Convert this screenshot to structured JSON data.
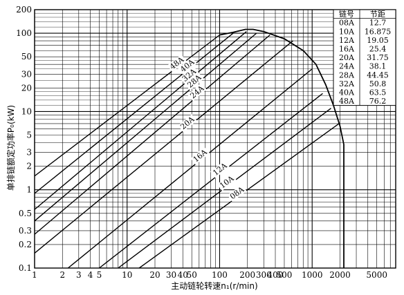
{
  "chart_data": {
    "type": "line",
    "title": "",
    "x_scale": "log",
    "y_scale": "log",
    "xlim": [
      1,
      8000
    ],
    "ylim": [
      0.1,
      200
    ],
    "grid": true,
    "xlabel": "主动链轮转速n₁(r/min)",
    "ylabel": "单排链额定功率P₀(kW)",
    "x_ticks": [
      "1",
      "2",
      "3",
      "4",
      "5",
      "10",
      "20",
      "30",
      "40",
      "50",
      "100",
      "200",
      "300",
      "400",
      "500",
      "1000",
      "2000",
      "5000"
    ],
    "y_ticks": [
      "0.1",
      "0.2",
      "0.3",
      "0.5",
      "1",
      "2",
      "3",
      "5",
      "10",
      "20",
      "30",
      "50",
      "100",
      "200"
    ],
    "series": [
      {
        "name": "48A",
        "points": [
          [
            1,
            1.5
          ],
          [
            100,
            95
          ]
        ]
      },
      {
        "name": "40A",
        "points": [
          [
            1,
            0.9
          ],
          [
            140,
            100
          ]
        ]
      },
      {
        "name": "32A",
        "points": [
          [
            1,
            0.56
          ],
          [
            195,
            105
          ]
        ]
      },
      {
        "name": "28A",
        "points": [
          [
            1,
            0.4
          ],
          [
            250,
            100
          ]
        ]
      },
      {
        "name": "24A",
        "points": [
          [
            1,
            0.27
          ],
          [
            350,
            95
          ]
        ]
      },
      {
        "name": "20A",
        "points": [
          [
            1,
            0.155
          ],
          [
            620,
            80
          ]
        ]
      },
      {
        "name": "16A",
        "points": [
          [
            2.3,
            0.1
          ],
          [
            1000,
            35
          ]
        ]
      },
      {
        "name": "12A",
        "points": [
          [
            5,
            0.1
          ],
          [
            1300,
            17
          ]
        ]
      },
      {
        "name": "10A",
        "points": [
          [
            8,
            0.1
          ],
          [
            1600,
            11
          ]
        ]
      },
      {
        "name": "08A",
        "points": [
          [
            13.5,
            0.1
          ],
          [
            1950,
            7
          ]
        ]
      }
    ],
    "envelope": [
      [
        100,
        95
      ],
      [
        140,
        103
      ],
      [
        190,
        112
      ],
      [
        230,
        112
      ],
      [
        300,
        105
      ],
      [
        500,
        85
      ],
      [
        800,
        60
      ],
      [
        1100,
        40
      ],
      [
        1400,
        22
      ],
      [
        1700,
        12
      ],
      [
        2000,
        6.5
      ],
      [
        2200,
        3.8
      ]
    ],
    "cutoff": {
      "x": 2200,
      "y_from": 0.1,
      "y_to": 3.8
    },
    "table": {
      "headers": [
        "链号",
        "节距"
      ],
      "rows": [
        [
          "08A",
          "12.7"
        ],
        [
          "10A",
          "16.875"
        ],
        [
          "12A",
          "19.05"
        ],
        [
          "16A",
          "25.4"
        ],
        [
          "20A",
          "31.75"
        ],
        [
          "24A",
          "38.1"
        ],
        [
          "28A",
          "44.45"
        ],
        [
          "32A",
          "50.8"
        ],
        [
          "40A",
          "63.5"
        ],
        [
          "48A",
          "76.2"
        ]
      ]
    }
  }
}
